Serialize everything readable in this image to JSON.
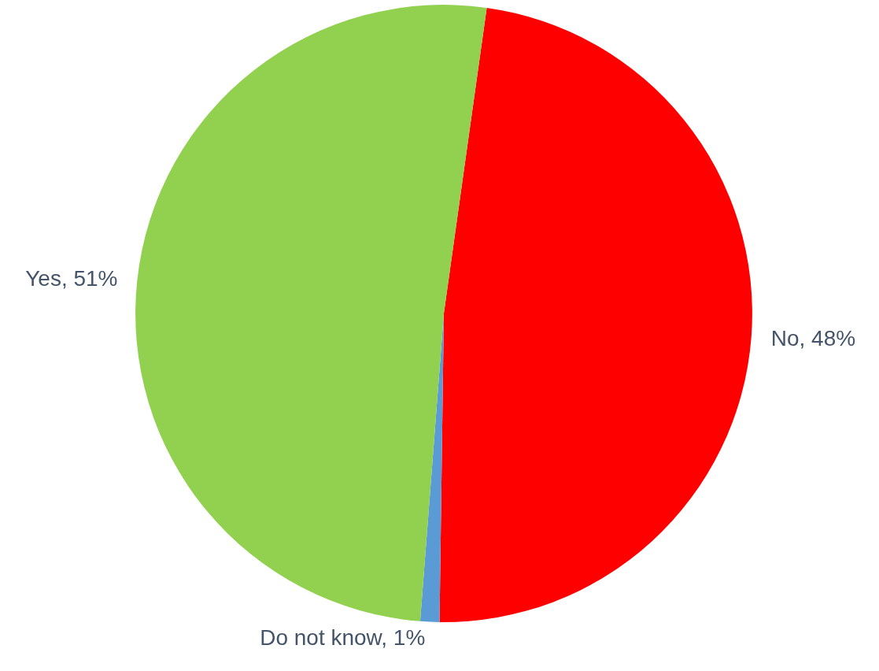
{
  "chart_data": {
    "type": "pie",
    "categories": [
      "No",
      "Do not know",
      "Yes"
    ],
    "values": [
      48,
      1,
      51
    ],
    "colors": [
      "#ff0000",
      "#5b9bd5",
      "#92d050"
    ],
    "value_labels": [
      "48%",
      "1%",
      "51%"
    ],
    "legend": false
  }
}
